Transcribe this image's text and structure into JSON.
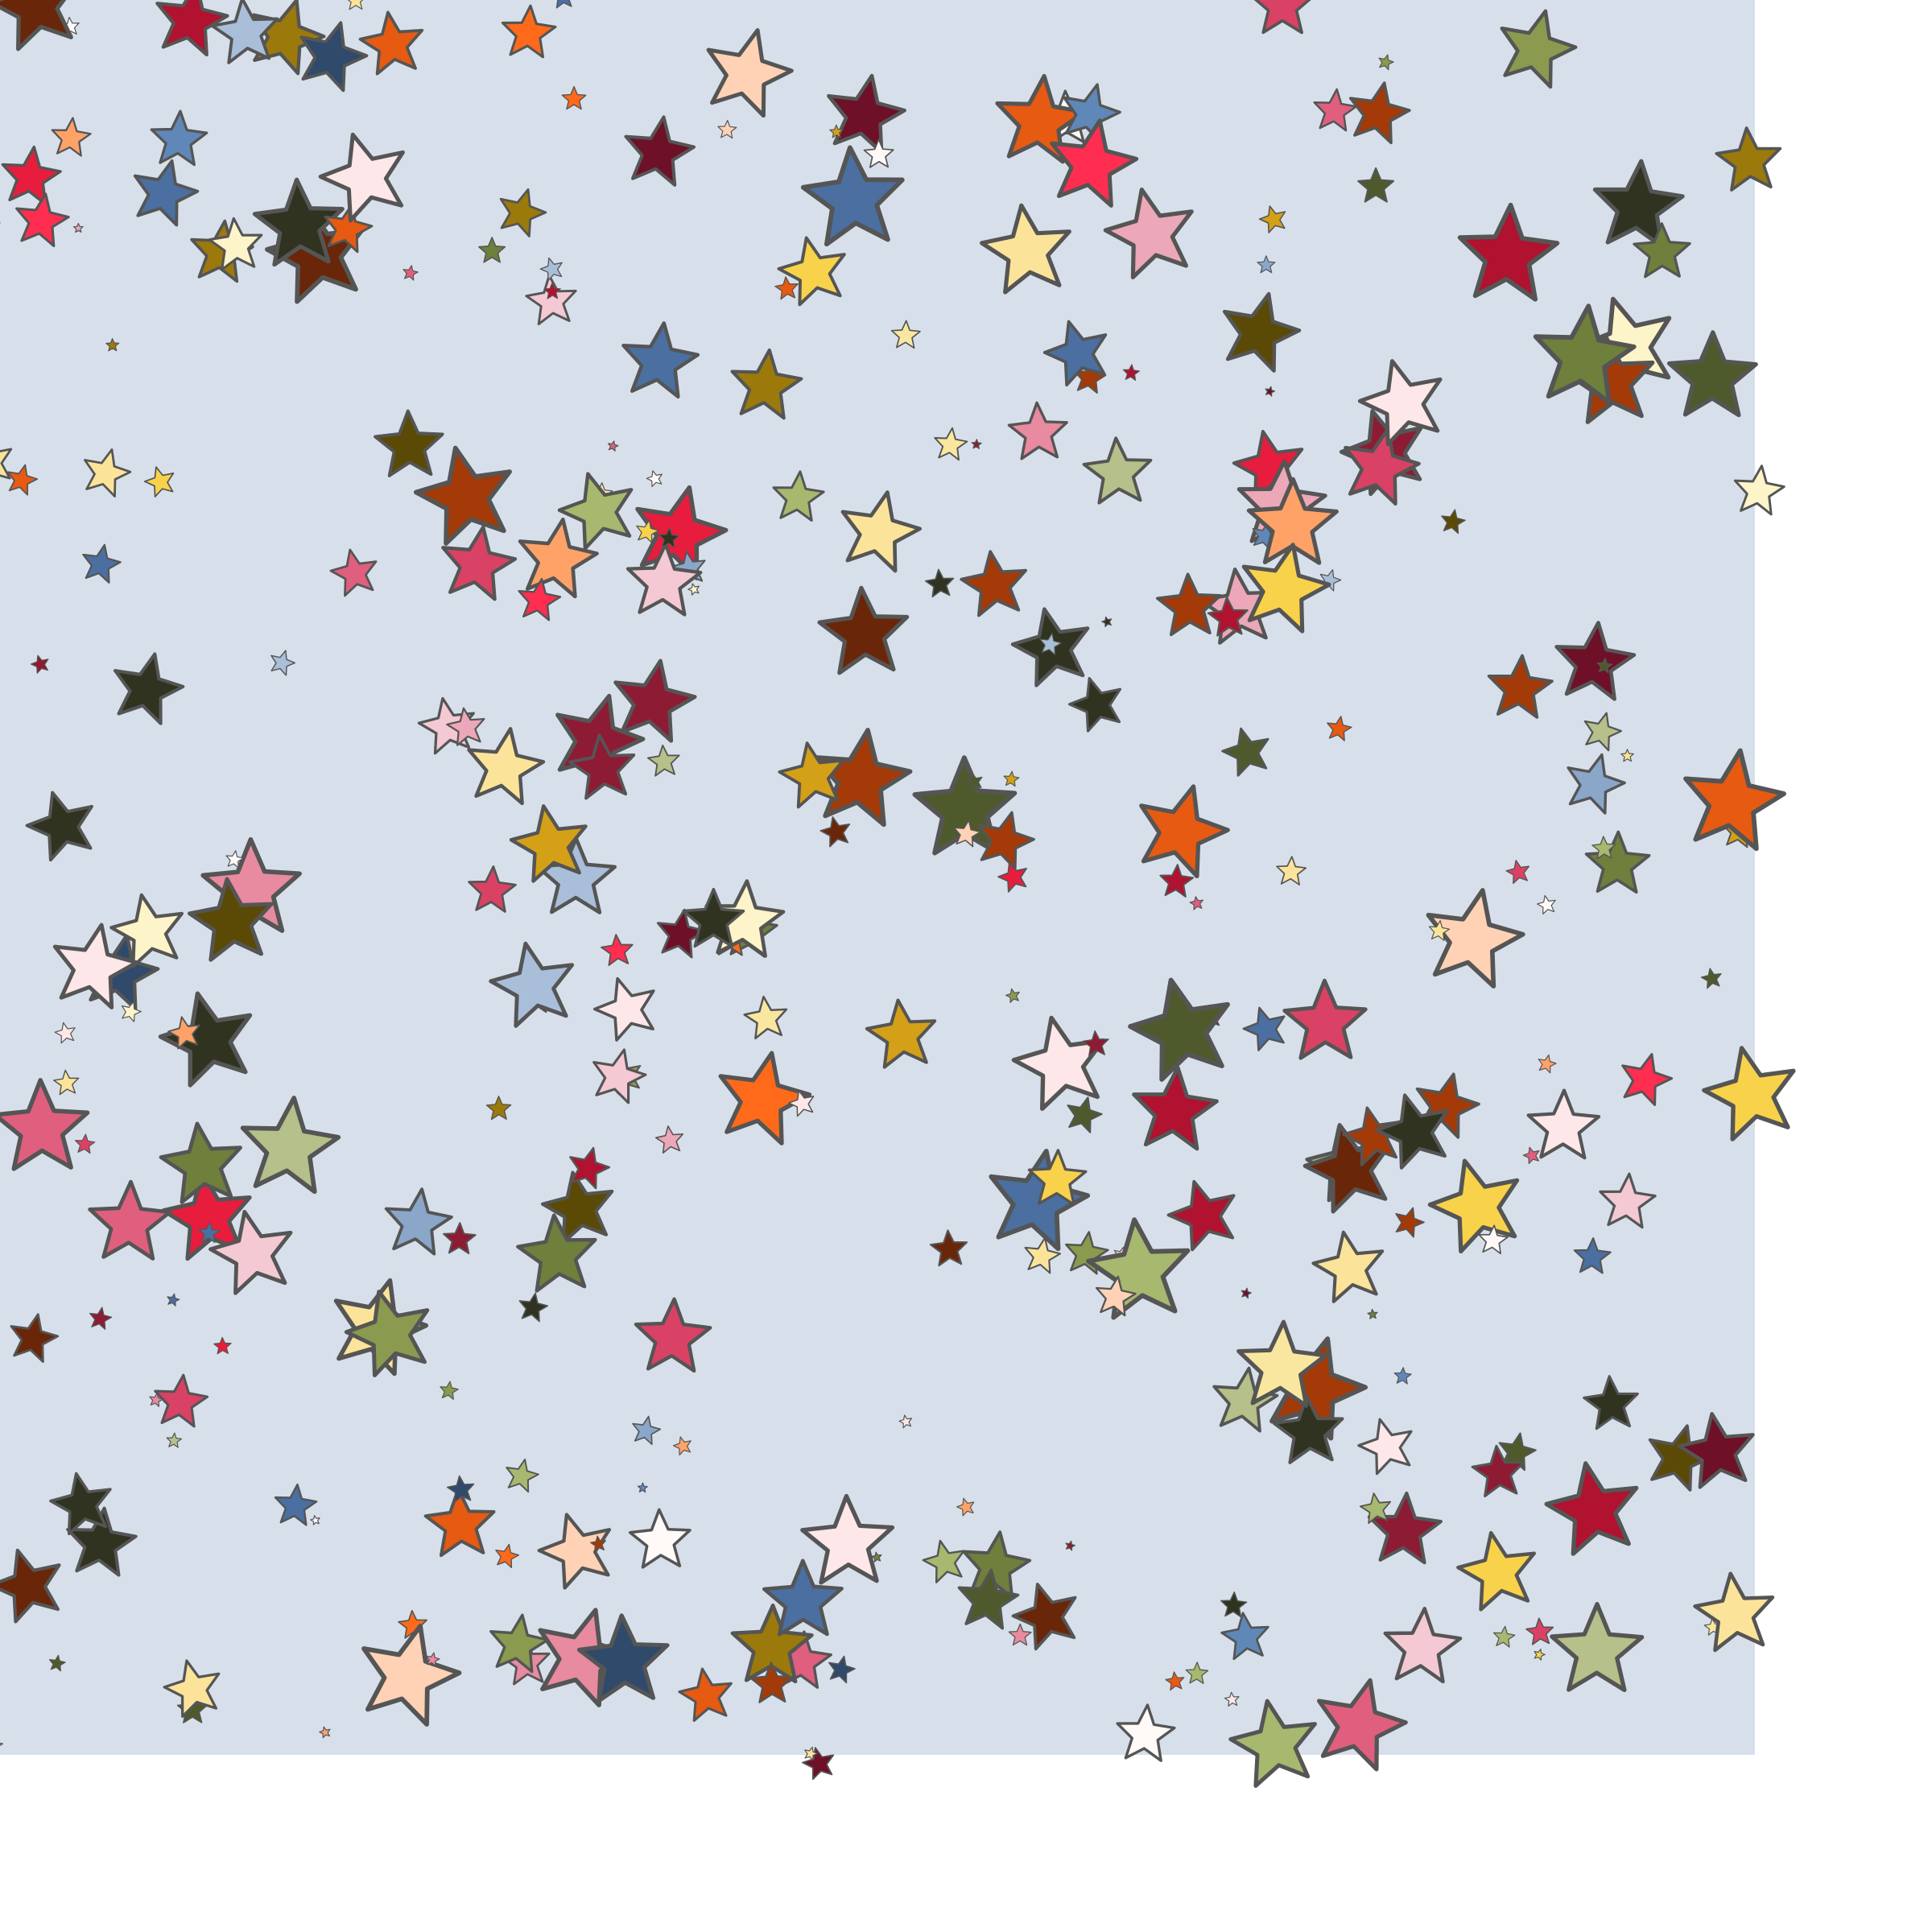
{
  "scene": {
    "background_color": "#d7e0ea",
    "page_color": "#ffffff",
    "outline_color": "#555555",
    "palette": [
      "#f9e79f",
      "#fbe49a",
      "#fdf5c9",
      "#f8d24a",
      "#d4a017",
      "#9b7a0b",
      "#5b4a06",
      "#b5c08a",
      "#a7b86f",
      "#8a9a4e",
      "#6f7f3c",
      "#4f5a2c",
      "#2f3320",
      "#a9bed8",
      "#8aa7c9",
      "#5f88b8",
      "#4a6fa0",
      "#2f4a6b",
      "#fffaf8",
      "#fde7e9",
      "#f4c9d3",
      "#eca7b8",
      "#e88aa0",
      "#e05f7e",
      "#d94264",
      "#e81c3d",
      "#ff2e50",
      "#b0122f",
      "#8e1b34",
      "#6e1028",
      "#ffa268",
      "#ff6a1a",
      "#e65a12",
      "#a33a08",
      "#6a2608",
      "#ffd2b6"
    ]
  }
}
